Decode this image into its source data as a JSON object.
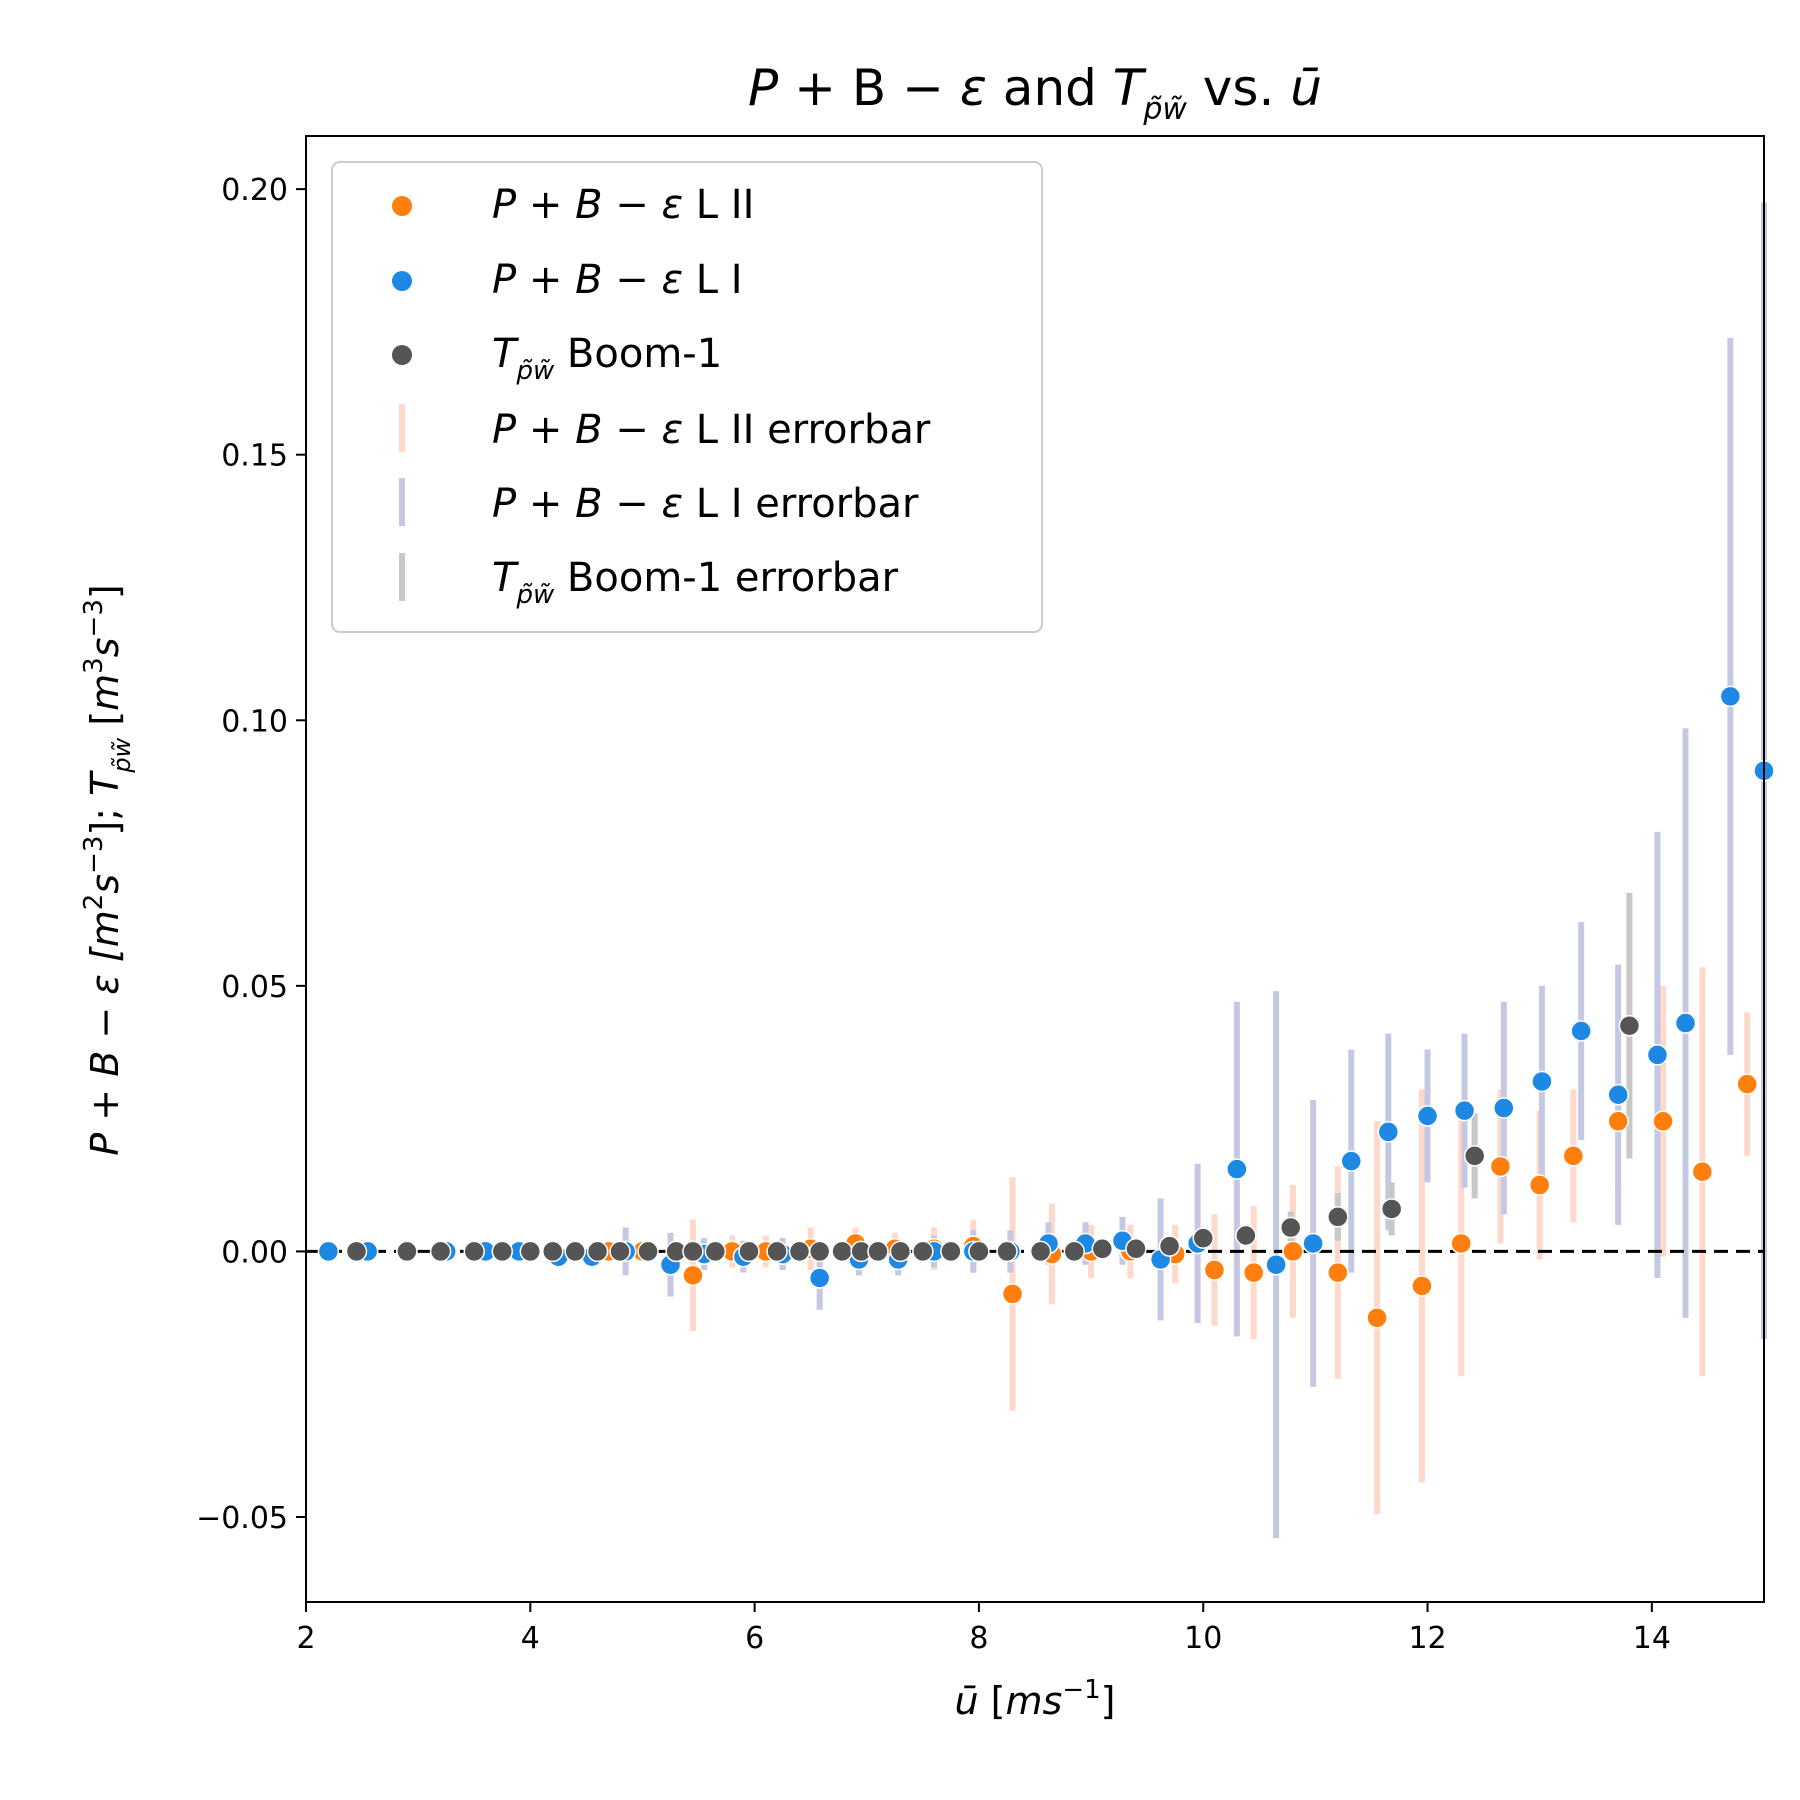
{
  "chart_data": {
    "type": "scatter",
    "title": {
      "a": "P",
      "b": " + B − ",
      "c": "ε",
      "d": " and ",
      "e": "T",
      "sub": "p̃w̃",
      "f": " vs. ",
      "g": "ū"
    },
    "xlabel": {
      "a": "ū",
      "b": " [",
      "c": "ms",
      "sup": "−1",
      "d": "]"
    },
    "ylabel": {
      "a": "P + B − ε [",
      "b": "m",
      "sup1": "2",
      "c": "s",
      "sup2": "−3",
      "d": "]; ",
      "e": "T",
      "sub": "p̃w̃",
      "f": " [",
      "g": "m",
      "sup3": "3",
      "h": "s",
      "sup4": "−3",
      "i": "]"
    },
    "xlim": [
      2,
      15
    ],
    "ylim": [
      -0.066,
      0.21
    ],
    "x_ticks": [
      2,
      4,
      6,
      8,
      10,
      12,
      14
    ],
    "x_tick_labels": [
      "2",
      "4",
      "6",
      "8",
      "10",
      "12",
      "14"
    ],
    "y_ticks": [
      -0.05,
      0.0,
      0.05,
      0.1,
      0.15,
      0.2
    ],
    "y_tick_labels": [
      "−0.05",
      "0.00",
      "0.05",
      "0.10",
      "0.15",
      "0.20"
    ],
    "reference_line": {
      "y": 0,
      "style": "dashed",
      "color": "#000000"
    },
    "legend_position": "upper-left",
    "legend": [
      {
        "key": "pbe_l2",
        "kind": "marker",
        "color": "#ff7f0e",
        "label_main": "P + B − ε",
        "label_rest": " L II"
      },
      {
        "key": "pbe_l1",
        "kind": "marker",
        "color": "#1e88e5",
        "label_main": "P + B − ε",
        "label_rest": " L I"
      },
      {
        "key": "tpw",
        "kind": "marker",
        "color": "#555555",
        "label_main": "T",
        "label_sub": "p̃w̃",
        "label_rest": " Boom-1"
      },
      {
        "key": "pbe_l2_err",
        "kind": "bar",
        "color": "#ffd8cc",
        "label_main": "P + B − ε",
        "label_rest": " L II errorbar"
      },
      {
        "key": "pbe_l1_err",
        "kind": "bar",
        "color": "#c5c8e3",
        "label_main": "P + B − ε",
        "label_rest": " L I errorbar"
      },
      {
        "key": "tpw_err",
        "kind": "bar",
        "color": "#c8c8c8",
        "label_main": "T",
        "label_sub": "p̃w̃",
        "label_rest": " Boom-1 errorbar"
      }
    ],
    "series": [
      {
        "key": "pbe_l2",
        "color": "#ff7f0e",
        "error_color": "#ffd8cc",
        "points": [
          [
            3.2,
            0.0,
            0.0005
          ],
          [
            3.6,
            0.0,
            0.0005
          ],
          [
            4.4,
            0.0,
            0.001
          ],
          [
            4.7,
            0.0,
            0.001
          ],
          [
            5.0,
            0.0,
            0.002
          ],
          [
            5.45,
            -0.0045,
            0.0105
          ],
          [
            5.8,
            0.0,
            0.003
          ],
          [
            6.1,
            0.0,
            0.003
          ],
          [
            6.5,
            0.0005,
            0.004
          ],
          [
            6.9,
            0.0015,
            0.003
          ],
          [
            7.25,
            0.0005,
            0.003
          ],
          [
            7.6,
            0.0005,
            0.004
          ],
          [
            7.95,
            0.001,
            0.005
          ],
          [
            8.3,
            -0.008,
            0.022
          ],
          [
            8.65,
            -0.0005,
            0.0095
          ],
          [
            9.0,
            0.0,
            0.005
          ],
          [
            9.35,
            0.0,
            0.005
          ],
          [
            9.75,
            -0.0005,
            0.0055
          ],
          [
            10.1,
            -0.0035,
            0.0105
          ],
          [
            10.45,
            -0.004,
            0.0125
          ],
          [
            10.8,
            0.0,
            0.0125
          ],
          [
            11.2,
            -0.004,
            0.02
          ],
          [
            11.55,
            -0.0125,
            0.037
          ],
          [
            11.95,
            -0.0065,
            0.037
          ],
          [
            12.3,
            0.0015,
            0.025
          ],
          [
            12.65,
            0.016,
            0.0145
          ],
          [
            13.0,
            0.0125,
            0.014
          ],
          [
            13.3,
            0.018,
            0.0125
          ],
          [
            13.7,
            0.0245,
            0.0125
          ],
          [
            14.1,
            0.0245,
            0.0255
          ],
          [
            14.45,
            0.015,
            0.0385
          ],
          [
            14.85,
            0.0315,
            0.0135
          ]
        ]
      },
      {
        "key": "pbe_l1",
        "color": "#1e88e5",
        "error_color": "#c5c8e3",
        "points": [
          [
            2.2,
            0.0,
            0.0
          ],
          [
            2.55,
            0.0,
            0.0005
          ],
          [
            2.9,
            0.0,
            0.0005
          ],
          [
            3.25,
            0.0,
            0.0005
          ],
          [
            3.6,
            0.0,
            0.0005
          ],
          [
            3.9,
            0.0,
            0.001
          ],
          [
            4.25,
            -0.001,
            0.001
          ],
          [
            4.55,
            -0.001,
            0.0015
          ],
          [
            4.85,
            0.0,
            0.0045
          ],
          [
            5.25,
            -0.0025,
            0.006
          ],
          [
            5.55,
            -0.0005,
            0.003
          ],
          [
            5.9,
            -0.001,
            0.003
          ],
          [
            6.25,
            -0.0005,
            0.003
          ],
          [
            6.58,
            -0.005,
            0.006
          ],
          [
            6.93,
            -0.0015,
            0.003
          ],
          [
            7.28,
            -0.0015,
            0.003
          ],
          [
            7.6,
            0.0,
            0.003
          ],
          [
            7.95,
            0.0,
            0.004
          ],
          [
            8.28,
            0.0,
            0.004
          ],
          [
            8.62,
            0.0015,
            0.004
          ],
          [
            8.95,
            0.0015,
            0.004
          ],
          [
            9.28,
            0.002,
            0.0045
          ],
          [
            9.62,
            -0.0015,
            0.0115
          ],
          [
            9.95,
            0.0015,
            0.015
          ],
          [
            10.3,
            0.0155,
            0.0315
          ],
          [
            10.65,
            -0.0025,
            0.0515
          ],
          [
            10.98,
            0.0015,
            0.027
          ],
          [
            11.32,
            0.017,
            0.021
          ],
          [
            11.65,
            0.0225,
            0.0185
          ],
          [
            12.0,
            0.0255,
            0.0125
          ],
          [
            12.33,
            0.0265,
            0.0145
          ],
          [
            12.68,
            0.027,
            0.02
          ],
          [
            13.02,
            0.032,
            0.018
          ],
          [
            13.37,
            0.0415,
            0.0205
          ],
          [
            13.7,
            0.0295,
            0.0245
          ],
          [
            14.05,
            0.037,
            0.042
          ],
          [
            14.3,
            0.043,
            0.0555
          ],
          [
            14.7,
            0.1045,
            0.0675
          ],
          [
            15.0,
            0.0905,
            0.107
          ]
        ]
      },
      {
        "key": "tpw",
        "color": "#555555",
        "error_color": "#c8c8c8",
        "points": [
          [
            2.45,
            0.0,
            0.0
          ],
          [
            2.9,
            0.0,
            0.0
          ],
          [
            3.2,
            0.0,
            0.0
          ],
          [
            3.5,
            0.0,
            0.0
          ],
          [
            3.75,
            0.0,
            0.0
          ],
          [
            4.0,
            0.0,
            0.0
          ],
          [
            4.2,
            0.0,
            0.0
          ],
          [
            4.4,
            0.0,
            0.0
          ],
          [
            4.6,
            0.0,
            0.0
          ],
          [
            4.8,
            0.0,
            0.0
          ],
          [
            5.05,
            0.0,
            0.0
          ],
          [
            5.3,
            0.0,
            0.0
          ],
          [
            5.45,
            0.0,
            0.0
          ],
          [
            5.65,
            0.0,
            0.0
          ],
          [
            5.95,
            0.0,
            0.0
          ],
          [
            6.2,
            0.0,
            0.0
          ],
          [
            6.4,
            0.0,
            0.0
          ],
          [
            6.58,
            0.0,
            0.0
          ],
          [
            6.78,
            0.0,
            0.0
          ],
          [
            6.95,
            0.0,
            0.0
          ],
          [
            7.1,
            0.0,
            0.0
          ],
          [
            7.3,
            0.0,
            0.0
          ],
          [
            7.5,
            0.0,
            0.0
          ],
          [
            7.75,
            0.0,
            0.0
          ],
          [
            8.0,
            0.0,
            0.0
          ],
          [
            8.25,
            0.0,
            0.0
          ],
          [
            8.55,
            0.0,
            0.0
          ],
          [
            8.85,
            0.0,
            0.0
          ],
          [
            9.1,
            0.0005,
            0.0
          ],
          [
            9.4,
            0.0005,
            0.0
          ],
          [
            9.7,
            0.001,
            0.0
          ],
          [
            10.0,
            0.0025,
            0.0
          ],
          [
            10.38,
            0.003,
            0.0
          ],
          [
            10.78,
            0.0045,
            0.003
          ],
          [
            11.2,
            0.0065,
            0.0045
          ],
          [
            11.68,
            0.008,
            0.005
          ],
          [
            12.42,
            0.018,
            0.008
          ],
          [
            13.8,
            0.0425,
            0.025
          ]
        ]
      }
    ]
  }
}
